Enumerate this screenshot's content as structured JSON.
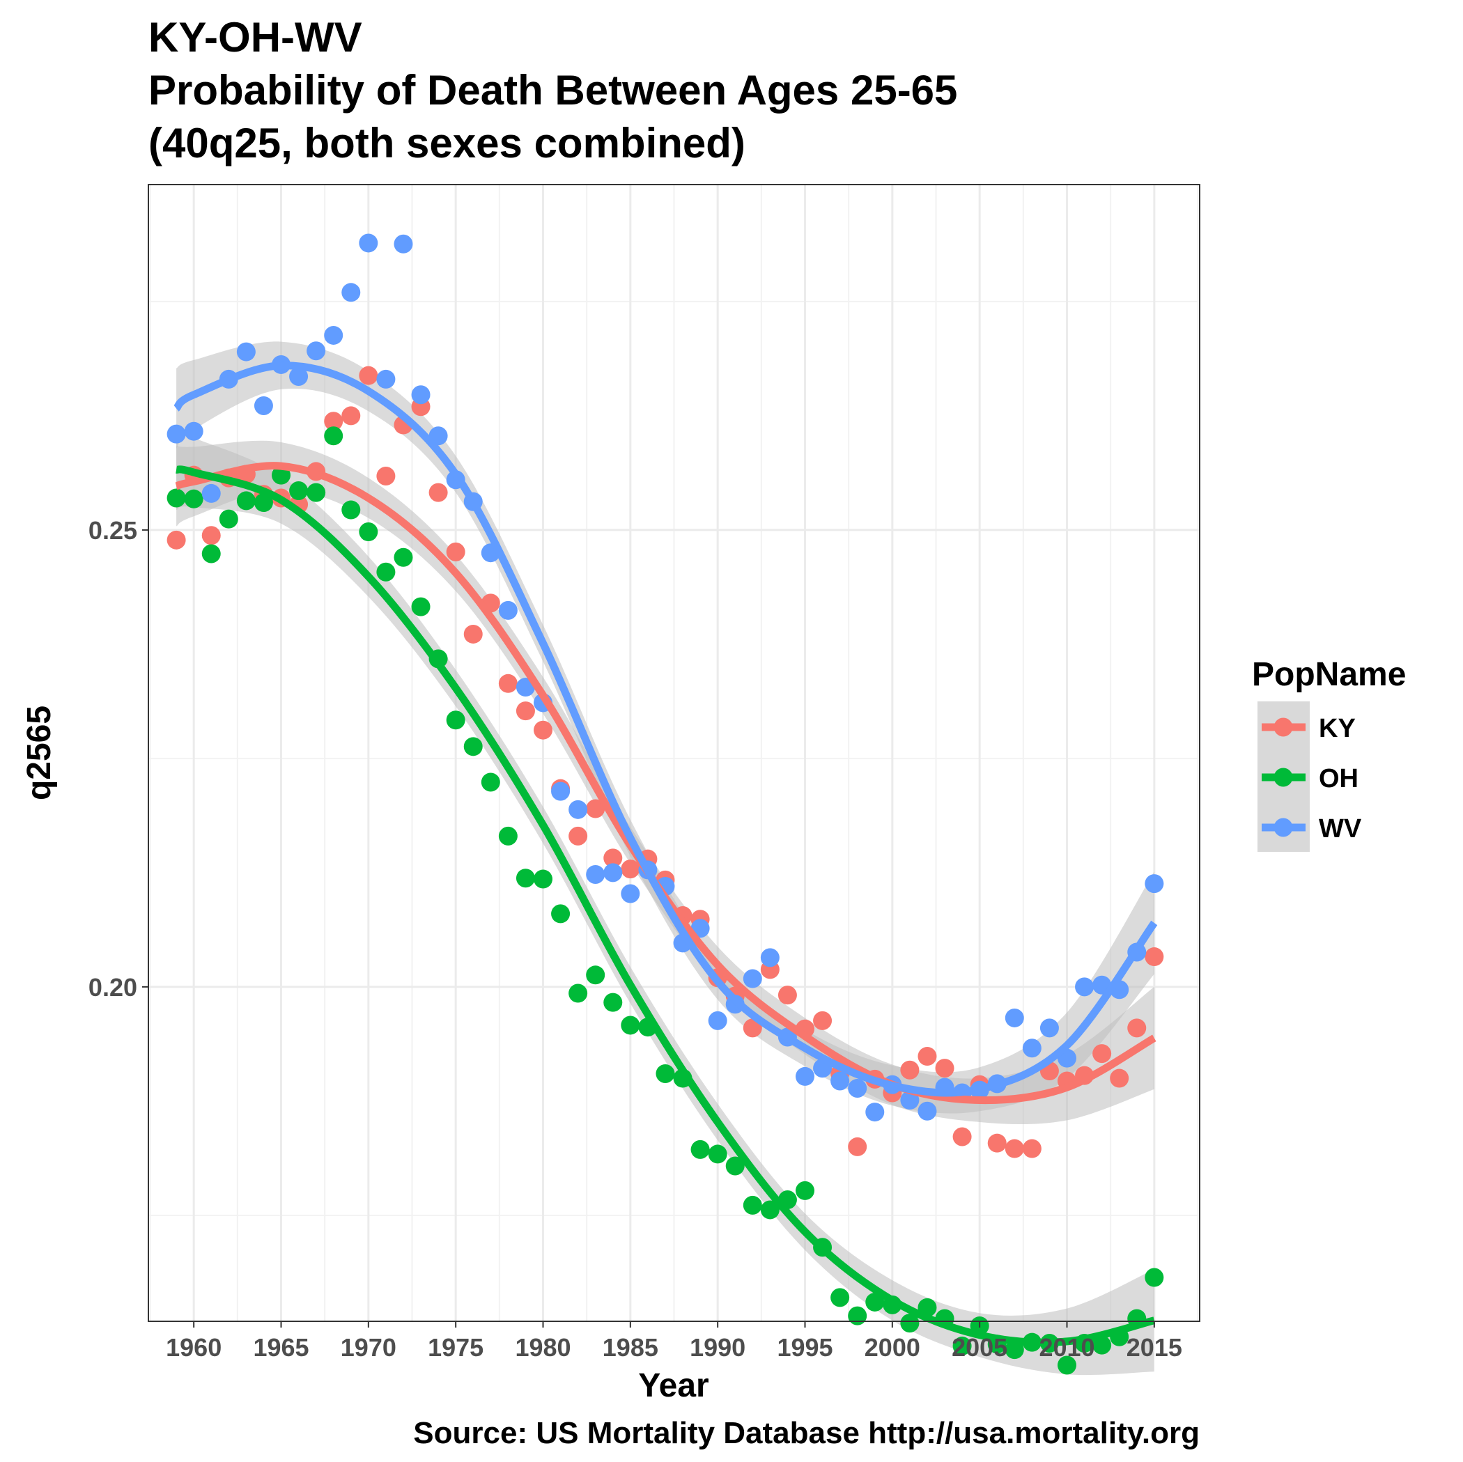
{
  "chart_data": {
    "type": "scatter",
    "title_lines": [
      "KY-OH-WV",
      "Probability of Death Between Ages 25-65",
      "(40q25, both sexes combined)"
    ],
    "xlabel": "Year",
    "ylabel": "q2565",
    "caption": "Source: US Mortality Database http://usa.mortality.org",
    "xlim": [
      1957.4,
      2017.6
    ],
    "ylim": [
      0.1634,
      0.2878
    ],
    "x_ticks": [
      "1960",
      "1965",
      "1970",
      "1975",
      "1980",
      "1985",
      "1990",
      "1995",
      "2000",
      "2005",
      "2010",
      "2015"
    ],
    "y_ticks": [
      "0.20",
      "0.25"
    ],
    "grid": true,
    "legend": {
      "title": "PopName",
      "position": "right"
    },
    "trend": "smoothed loess fit with gray confidence band per series",
    "colors": {
      "KY": "#f8766d",
      "OH": "#00ba38",
      "WV": "#619cff",
      "band": "#bebebe",
      "panel_border": "#333333",
      "grid": "#ebebeb"
    },
    "series": [
      {
        "name": "KY",
        "x": [
          1959,
          1960,
          1961,
          1962,
          1963,
          1964,
          1965,
          1966,
          1967,
          1968,
          1969,
          1970,
          1971,
          1972,
          1973,
          1974,
          1975,
          1976,
          1977,
          1978,
          1979,
          1980,
          1981,
          1982,
          1983,
          1984,
          1985,
          1986,
          1987,
          1988,
          1989,
          1990,
          1991,
          1992,
          1993,
          1994,
          1995,
          1996,
          1997,
          1998,
          1999,
          2000,
          2001,
          2002,
          2003,
          2004,
          2005,
          2006,
          2007,
          2008,
          2009,
          2010,
          2011,
          2012,
          2013,
          2014,
          2015
        ],
        "y": [
          0.2489,
          0.256,
          0.2494,
          0.2557,
          0.2561,
          0.2539,
          0.2535,
          0.2528,
          0.2564,
          0.2619,
          0.2625,
          0.2669,
          0.2559,
          0.2615,
          0.2635,
          0.2541,
          0.2476,
          0.2386,
          0.242,
          0.2332,
          0.2302,
          0.2281,
          0.2217,
          0.2165,
          0.2195,
          0.2141,
          0.2129,
          0.214,
          0.2117,
          0.2078,
          0.2074,
          0.201,
          0.199,
          0.1955,
          0.2019,
          0.1991,
          0.1954,
          0.1963,
          0.1905,
          0.1825,
          0.1899,
          0.1884,
          0.1909,
          0.1924,
          0.1911,
          0.1836,
          0.1893,
          0.1829,
          0.1823,
          0.1823,
          0.1908,
          0.1897,
          0.1903,
          0.1927,
          0.19,
          0.1955,
          0.2033
        ],
        "fit_x": [
          1959,
          1960,
          1965,
          1970,
          1975,
          1980,
          1985,
          1990,
          1995,
          2000,
          2005,
          2010,
          2015
        ],
        "fit_y": [
          0.2548,
          0.2553,
          0.257,
          0.2535,
          0.2453,
          0.2319,
          0.2155,
          0.2024,
          0.1946,
          0.1893,
          0.1876,
          0.189,
          0.1944
        ],
        "fit_se": [
          0.0022,
          0.0019,
          0.0013,
          0.0011,
          0.001,
          0.001,
          0.001,
          0.001,
          0.001,
          0.0011,
          0.0012,
          0.0018,
          0.0028
        ]
      },
      {
        "name": "OH",
        "x": [
          1959,
          1960,
          1961,
          1962,
          1963,
          1964,
          1965,
          1966,
          1967,
          1968,
          1969,
          1970,
          1971,
          1972,
          1973,
          1974,
          1975,
          1976,
          1977,
          1978,
          1979,
          1980,
          1981,
          1982,
          1983,
          1984,
          1985,
          1986,
          1987,
          1988,
          1989,
          1990,
          1991,
          1992,
          1993,
          1994,
          1995,
          1996,
          1997,
          1998,
          1999,
          2000,
          2001,
          2002,
          2003,
          2004,
          2005,
          2006,
          2007,
          2008,
          2009,
          2010,
          2011,
          2012,
          2013,
          2014,
          2015
        ],
        "y": [
          0.2535,
          0.2534,
          0.2474,
          0.2512,
          0.2532,
          0.253,
          0.256,
          0.2543,
          0.2541,
          0.2603,
          0.2522,
          0.2498,
          0.2454,
          0.247,
          0.2416,
          0.2359,
          0.2292,
          0.2263,
          0.2224,
          0.2165,
          0.2119,
          0.2118,
          0.208,
          0.1993,
          0.2013,
          0.1983,
          0.1958,
          0.1956,
          0.1905,
          0.19,
          0.1822,
          0.1817,
          0.1804,
          0.1761,
          0.1756,
          0.1767,
          0.1777,
          0.1715,
          0.166,
          0.164,
          0.1655,
          0.1652,
          0.1632,
          0.1649,
          0.1637,
          0.1607,
          0.1629,
          0.1609,
          0.1603,
          0.1611,
          0.161,
          0.1586,
          0.161,
          0.1608,
          0.1617,
          0.1637,
          0.1682
        ],
        "fit_x": [
          1959,
          1960,
          1965,
          1970,
          1975,
          1980,
          1985,
          1990,
          1995,
          2000,
          2005,
          2010,
          2015
        ],
        "fit_y": [
          0.2566,
          0.2563,
          0.2533,
          0.2449,
          0.2327,
          0.2177,
          0.2002,
          0.1852,
          0.1732,
          0.1657,
          0.1619,
          0.1612,
          0.1635
        ],
        "fit_se": [
          0.0022,
          0.0019,
          0.0013,
          0.0011,
          0.001,
          0.001,
          0.001,
          0.001,
          0.001,
          0.0011,
          0.0012,
          0.0018,
          0.0028
        ]
      },
      {
        "name": "WV",
        "x": [
          1959,
          1960,
          1961,
          1962,
          1963,
          1964,
          1965,
          1966,
          1967,
          1968,
          1969,
          1970,
          1971,
          1972,
          1973,
          1974,
          1975,
          1976,
          1977,
          1978,
          1979,
          1980,
          1981,
          1982,
          1983,
          1984,
          1985,
          1986,
          1987,
          1988,
          1989,
          1990,
          1991,
          1992,
          1993,
          1994,
          1995,
          1996,
          1997,
          1998,
          1999,
          2000,
          2001,
          2002,
          2003,
          2004,
          2005,
          2006,
          2007,
          2008,
          2009,
          2010,
          2011,
          2012,
          2013,
          2014,
          2015
        ],
        "y": [
          0.2605,
          0.2608,
          0.254,
          0.2665,
          0.2695,
          0.2636,
          0.2681,
          0.2668,
          0.2696,
          0.2713,
          0.276,
          0.2814,
          0.2665,
          0.2813,
          0.2648,
          0.2603,
          0.2555,
          0.2531,
          0.2475,
          0.2412,
          0.2328,
          0.2311,
          0.2214,
          0.2194,
          0.2123,
          0.2125,
          0.2102,
          0.2128,
          0.211,
          0.2048,
          0.2064,
          0.1963,
          0.1981,
          0.2009,
          0.2032,
          0.1945,
          0.1902,
          0.1911,
          0.1897,
          0.1889,
          0.1863,
          0.1893,
          0.1876,
          0.1864,
          0.189,
          0.1884,
          0.1887,
          0.1894,
          0.1966,
          0.1933,
          0.1955,
          0.1922,
          0.2,
          0.2002,
          0.1997,
          0.2038,
          0.2113
        ],
        "fit_x": [
          1959,
          1960,
          1965,
          1970,
          1975,
          1980,
          1985,
          1990,
          1995,
          2000,
          2005,
          2010,
          2015
        ],
        "fit_y": [
          0.2633,
          0.2648,
          0.268,
          0.2652,
          0.2561,
          0.2376,
          0.2163,
          0.2006,
          0.1933,
          0.1892,
          0.1888,
          0.1936,
          0.207
        ],
        "fit_se": [
          0.0022,
          0.0019,
          0.0013,
          0.0011,
          0.001,
          0.001,
          0.001,
          0.001,
          0.001,
          0.0011,
          0.0012,
          0.0018,
          0.0028
        ]
      }
    ]
  }
}
